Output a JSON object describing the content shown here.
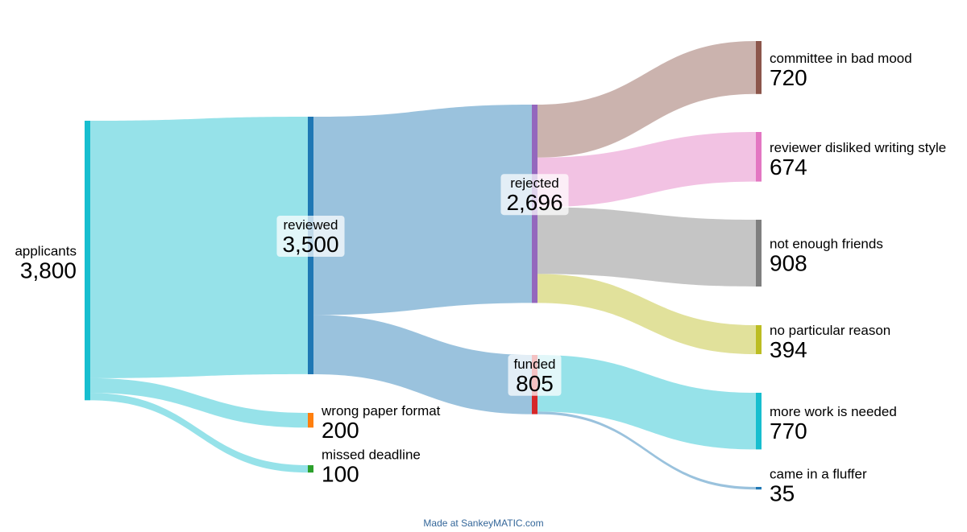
{
  "chart_data": {
    "type": "sankey",
    "nodes": [
      {
        "id": "applicants",
        "label": "applicants",
        "value": "3,800",
        "color": "#17becf"
      },
      {
        "id": "reviewed",
        "label": "reviewed",
        "value": "3,500",
        "color": "#1f77b4"
      },
      {
        "id": "wrong_format",
        "label": "wrong paper format",
        "value": "200",
        "color": "#ff7f0e"
      },
      {
        "id": "missed_deadline",
        "label": "missed deadline",
        "value": "100",
        "color": "#2ca02c"
      },
      {
        "id": "rejected",
        "label": "rejected",
        "value": "2,696",
        "color": "#9467bd"
      },
      {
        "id": "funded",
        "label": "funded",
        "value": "805",
        "color": "#d62728"
      },
      {
        "id": "bad_mood",
        "label": "committee in bad mood",
        "value": "720",
        "color": "#8c564b"
      },
      {
        "id": "writing_style",
        "label": "reviewer disliked writing style",
        "value": "674",
        "color": "#e377c2"
      },
      {
        "id": "friends",
        "label": "not enough friends",
        "value": "908",
        "color": "#7f7f7f"
      },
      {
        "id": "no_reason",
        "label": "no particular reason",
        "value": "394",
        "color": "#bcbd22"
      },
      {
        "id": "more_work",
        "label": "more work is needed",
        "value": "770",
        "color": "#17becf"
      },
      {
        "id": "fluffer",
        "label": "came in a fluffer",
        "value": "35",
        "color": "#1f77b4"
      }
    ],
    "flows": [
      {
        "from": "applicants",
        "to": "reviewed",
        "value": 3500
      },
      {
        "from": "applicants",
        "to": "wrong_format",
        "value": 200
      },
      {
        "from": "applicants",
        "to": "missed_deadline",
        "value": 100
      },
      {
        "from": "reviewed",
        "to": "rejected",
        "value": 2696
      },
      {
        "from": "reviewed",
        "to": "funded",
        "value": 805
      },
      {
        "from": "rejected",
        "to": "bad_mood",
        "value": 720
      },
      {
        "from": "rejected",
        "to": "writing_style",
        "value": 674
      },
      {
        "from": "rejected",
        "to": "friends",
        "value": 908
      },
      {
        "from": "rejected",
        "to": "no_reason",
        "value": 394
      },
      {
        "from": "funded",
        "to": "more_work",
        "value": 770
      },
      {
        "from": "funded",
        "to": "fluffer",
        "value": 35
      }
    ]
  },
  "footer": {
    "credit": "Made at SankeyMATIC.com"
  }
}
